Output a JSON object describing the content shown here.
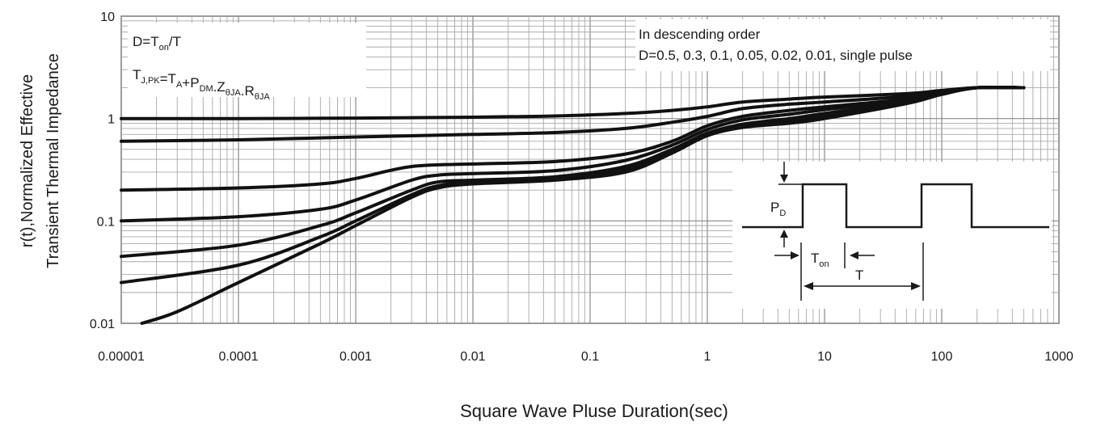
{
  "chart_data": {
    "type": "line",
    "xlabel": "Square Wave Pluse Duration(sec)",
    "ylabel_lines": [
      "r(t),Normalized Effective",
      "Transient Thermal Impedance"
    ],
    "x_scale": "log",
    "y_scale": "log",
    "xlim": [
      1e-05,
      1000
    ],
    "ylim": [
      0.01,
      10
    ],
    "x_tick_labels": [
      "0.00001",
      "0.0001",
      "0.001",
      "0.01",
      "0.1",
      "1",
      "10",
      "100",
      "1000"
    ],
    "y_tick_labels": [
      "0.01",
      "0.1",
      "1",
      "10"
    ],
    "grid": true,
    "legend_note": {
      "line1": "In descending order",
      "line2": "D=0.5, 0.3, 0.1, 0.05, 0.02, 0.01, single pulse"
    },
    "formula_note": {
      "line1_main": "D=T",
      "line1_sub": "on",
      "line1_tail": "/T",
      "line2_parts": [
        {
          "t": "T",
          "sub": "J,PK"
        },
        {
          "t": "=T",
          "sub": "A"
        },
        {
          "t": "+P",
          "sub": "DM"
        },
        {
          "t": ".Z",
          "sub": "θJA"
        },
        {
          "t": ".R",
          "sub": "θJA"
        }
      ]
    },
    "inset": {
      "pd_main": "P",
      "pd_sub": "D",
      "ton_main": "T",
      "ton_sub": "on",
      "t_label": "T"
    },
    "series": [
      {
        "name": "D=0.5",
        "x": [
          1e-05,
          0.0001,
          0.001,
          0.01,
          0.05,
          0.2,
          0.5,
          1,
          2,
          5,
          10,
          50,
          100,
          200,
          500
        ],
        "y": [
          1.0,
          1.0,
          1.01,
          1.03,
          1.06,
          1.12,
          1.2,
          1.3,
          1.45,
          1.55,
          1.62,
          1.75,
          1.88,
          2.0,
          2.0
        ]
      },
      {
        "name": "D=0.3",
        "x": [
          1e-05,
          0.0001,
          0.001,
          0.01,
          0.05,
          0.2,
          0.5,
          1,
          2,
          5,
          10,
          50,
          100,
          200,
          500
        ],
        "y": [
          0.6,
          0.62,
          0.66,
          0.7,
          0.73,
          0.8,
          0.92,
          1.05,
          1.25,
          1.38,
          1.45,
          1.65,
          1.85,
          2.0,
          2.0
        ]
      },
      {
        "name": "D=0.1",
        "x": [
          1e-05,
          0.0001,
          0.0005,
          0.001,
          0.003,
          0.01,
          0.05,
          0.2,
          0.5,
          1,
          2,
          5,
          10,
          50,
          100,
          200,
          500
        ],
        "y": [
          0.2,
          0.21,
          0.23,
          0.26,
          0.34,
          0.36,
          0.38,
          0.45,
          0.6,
          0.85,
          1.05,
          1.2,
          1.3,
          1.55,
          1.8,
          2.0,
          2.0
        ]
      },
      {
        "name": "D=0.05",
        "x": [
          1e-05,
          0.0001,
          0.0005,
          0.001,
          0.003,
          0.005,
          0.01,
          0.05,
          0.2,
          0.5,
          1,
          2,
          5,
          10,
          50,
          100,
          200,
          500
        ],
        "y": [
          0.1,
          0.11,
          0.13,
          0.16,
          0.25,
          0.28,
          0.29,
          0.31,
          0.39,
          0.55,
          0.78,
          0.97,
          1.1,
          1.22,
          1.5,
          1.78,
          2.0,
          2.0
        ]
      },
      {
        "name": "D=0.02",
        "x": [
          1e-05,
          0.0001,
          0.0005,
          0.001,
          0.003,
          0.005,
          0.01,
          0.05,
          0.2,
          0.5,
          1,
          2,
          5,
          10,
          50,
          100,
          200,
          500
        ],
        "y": [
          0.045,
          0.058,
          0.09,
          0.12,
          0.2,
          0.24,
          0.25,
          0.27,
          0.34,
          0.5,
          0.72,
          0.88,
          1.0,
          1.12,
          1.45,
          1.75,
          2.0,
          2.0
        ]
      },
      {
        "name": "D=0.01",
        "x": [
          1e-05,
          0.0001,
          0.0005,
          0.001,
          0.003,
          0.005,
          0.01,
          0.05,
          0.2,
          0.5,
          1,
          2,
          5,
          10,
          50,
          100,
          200,
          500
        ],
        "y": [
          0.025,
          0.037,
          0.07,
          0.1,
          0.18,
          0.22,
          0.24,
          0.26,
          0.32,
          0.48,
          0.7,
          0.85,
          0.95,
          1.05,
          1.42,
          1.74,
          2.0,
          2.0
        ]
      },
      {
        "name": "single pulse",
        "x": [
          1.5e-05,
          3e-05,
          0.0001,
          0.0005,
          0.001,
          0.003,
          0.005,
          0.01,
          0.05,
          0.2,
          0.5,
          1,
          2,
          5,
          10,
          50,
          100,
          200,
          500
        ],
        "y": [
          0.01,
          0.013,
          0.025,
          0.06,
          0.09,
          0.17,
          0.21,
          0.23,
          0.25,
          0.3,
          0.46,
          0.68,
          0.82,
          0.9,
          1.0,
          1.4,
          1.72,
          2.0,
          2.0
        ]
      }
    ]
  }
}
